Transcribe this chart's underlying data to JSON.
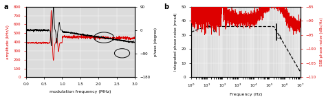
{
  "panel_a": {
    "label": "a",
    "xlabel": "modulation frequency (MHz)",
    "ylabel_left": "amplitude (kHz/V)",
    "ylabel_right": "phase (degree)",
    "xlim": [
      0.0,
      3.0
    ],
    "ylim_left": [
      0,
      800
    ],
    "ylim_right": [
      -180,
      90
    ],
    "yticks_left": [
      0,
      100,
      200,
      300,
      400,
      500,
      600,
      700,
      800
    ],
    "yticks_right": [
      -180,
      -90,
      0,
      90
    ],
    "xticks": [
      0.0,
      0.5,
      1.0,
      1.5,
      2.0,
      2.5,
      3.0
    ],
    "color_amp": "#dd0000",
    "color_phase": "#000000",
    "bg_color": "#dcdcdc",
    "grid_color": "#ffffff"
  },
  "panel_b": {
    "label": "b",
    "xlabel": "Frequency (Hz)",
    "ylabel_left": "Integrated phase noise (mrad)",
    "ylabel_right": "SSB phase noise (dBc/Hz)",
    "ylim_left": [
      0,
      50
    ],
    "ylim_right": [
      -110,
      -85
    ],
    "yticks_left": [
      0,
      10,
      20,
      30,
      40,
      50
    ],
    "yticks_right": [
      -110,
      -105,
      -100,
      -95,
      -90,
      -85
    ],
    "color_ipn": "#000000",
    "color_ssb": "#dd0000",
    "bg_color": "#dcdcdc",
    "grid_color": "#ffffff",
    "dashed_level": 36.0
  }
}
